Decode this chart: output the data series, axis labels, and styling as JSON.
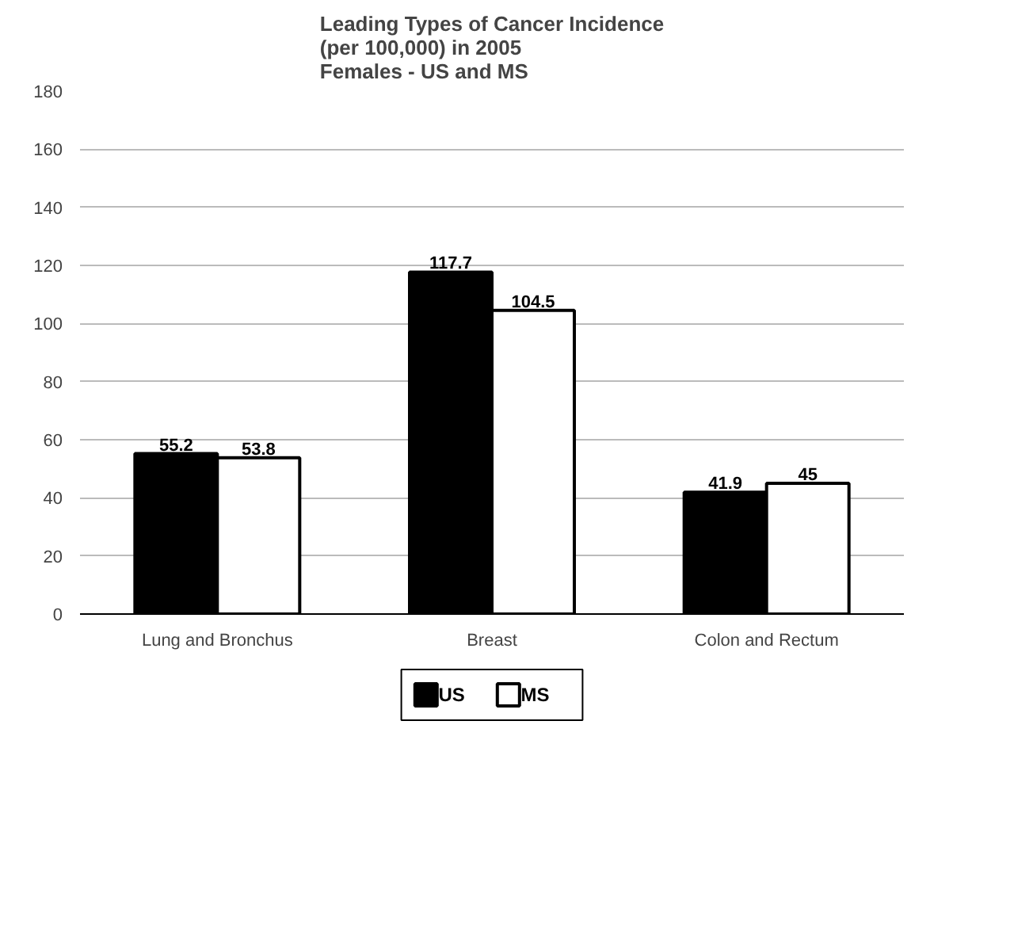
{
  "chart_data": {
    "type": "bar",
    "title": "Leading Types of Cancer Incidence\n(per 100,000) in 2005\nFemales - US and MS",
    "categories": [
      "Lung and Bronchus",
      "Breast",
      "Colon and Rectum"
    ],
    "series": [
      {
        "name": "US",
        "color": "#000000",
        "values": [
          55.2,
          117.7,
          41.9
        ]
      },
      {
        "name": "MS",
        "color": "#ffffff",
        "values": [
          53.8,
          104.5,
          45
        ]
      }
    ],
    "ylim": [
      0,
      180
    ],
    "yticks": [
      0,
      20,
      40,
      60,
      80,
      100,
      120,
      140,
      160,
      180
    ],
    "grid": "y",
    "legend": "bottom",
    "data_labels": true
  }
}
